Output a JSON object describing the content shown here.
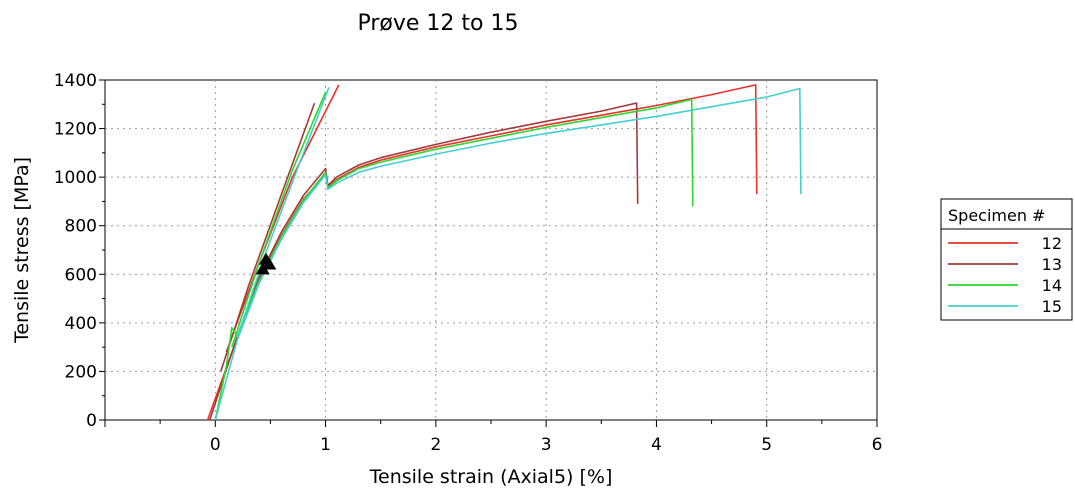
{
  "chart_data": {
    "type": "line",
    "title": "Prøve 12 to 15",
    "xlabel": "Tensile strain (Axial5) [%]",
    "ylabel": "Tensile stress [MPa]",
    "xlim": [
      -1,
      6
    ],
    "ylim": [
      0,
      1400
    ],
    "xticks": [
      0,
      1,
      2,
      3,
      4,
      5,
      6
    ],
    "yticks": [
      0,
      200,
      400,
      600,
      800,
      1000,
      1200,
      1400
    ],
    "grid": true,
    "legend_title": "Specimen #",
    "legend_position": "right",
    "series": [
      {
        "name": "12",
        "color": "#e8322a",
        "segments": [
          [
            [
              -0.07,
              0
            ],
            [
              0.2,
              340
            ],
            [
              0.4,
              580
            ],
            [
              0.6,
              760
            ],
            [
              0.8,
              910
            ],
            [
              1.0,
              1010
            ],
            [
              1.02,
              960
            ],
            [
              1.1,
              990
            ],
            [
              1.3,
              1040
            ],
            [
              1.5,
              1070
            ],
            [
              2.0,
              1125
            ],
            [
              2.5,
              1170
            ],
            [
              3.0,
              1215
            ],
            [
              3.5,
              1255
            ],
            [
              4.0,
              1295
            ],
            [
              4.5,
              1340
            ],
            [
              4.9,
              1380
            ],
            [
              4.91,
              930
            ]
          ],
          [
            [
              0.1,
              280
            ],
            [
              0.4,
              650
            ],
            [
              0.7,
              1000
            ],
            [
              1.12,
              1380
            ]
          ]
        ]
      },
      {
        "name": "13",
        "color": "#a33a3a",
        "segments": [
          [
            [
              -0.05,
              0
            ],
            [
              0.2,
              345
            ],
            [
              0.4,
              590
            ],
            [
              0.6,
              775
            ],
            [
              0.8,
              925
            ],
            [
              1.0,
              1035
            ],
            [
              1.02,
              965
            ],
            [
              1.1,
              1000
            ],
            [
              1.3,
              1050
            ],
            [
              1.5,
              1080
            ],
            [
              2.0,
              1135
            ],
            [
              2.5,
              1185
            ],
            [
              3.0,
              1230
            ],
            [
              3.5,
              1272
            ],
            [
              3.82,
              1305
            ],
            [
              3.83,
              890
            ]
          ],
          [
            [
              0.05,
              200
            ],
            [
              0.3,
              550
            ],
            [
              0.6,
              930
            ],
            [
              0.9,
              1305
            ]
          ]
        ]
      },
      {
        "name": "14",
        "color": "#2ed62e",
        "segments": [
          [
            [
              0.0,
              0
            ],
            [
              0.1,
              220
            ],
            [
              0.15,
              380
            ],
            [
              0.2,
              345
            ],
            [
              0.4,
              575
            ],
            [
              0.6,
              755
            ],
            [
              0.8,
              905
            ],
            [
              1.0,
              1020
            ],
            [
              1.02,
              955
            ],
            [
              1.1,
              985
            ],
            [
              1.3,
              1035
            ],
            [
              1.5,
              1062
            ],
            [
              2.0,
              1115
            ],
            [
              2.5,
              1160
            ],
            [
              3.0,
              1205
            ],
            [
              3.5,
              1245
            ],
            [
              4.0,
              1285
            ],
            [
              4.32,
              1320
            ],
            [
              4.33,
              880
            ]
          ],
          [
            [
              0.15,
              300
            ],
            [
              0.4,
              650
            ],
            [
              0.7,
              1030
            ],
            [
              1.0,
              1350
            ]
          ]
        ]
      },
      {
        "name": "15",
        "color": "#45cfcf",
        "segments": [
          [
            [
              0.0,
              0
            ],
            [
              0.2,
              330
            ],
            [
              0.4,
              565
            ],
            [
              0.6,
              745
            ],
            [
              0.8,
              895
            ],
            [
              1.0,
              1010
            ],
            [
              1.02,
              950
            ],
            [
              1.1,
              975
            ],
            [
              1.3,
              1020
            ],
            [
              1.5,
              1045
            ],
            [
              2.0,
              1095
            ],
            [
              2.5,
              1140
            ],
            [
              3.0,
              1180
            ],
            [
              3.5,
              1215
            ],
            [
              4.0,
              1250
            ],
            [
              4.5,
              1290
            ],
            [
              5.0,
              1330
            ],
            [
              5.3,
              1365
            ],
            [
              5.31,
              930
            ]
          ],
          [
            [
              0.2,
              340
            ],
            [
              0.45,
              680
            ],
            [
              0.75,
              1040
            ],
            [
              1.03,
              1370
            ]
          ]
        ]
      }
    ],
    "markers": [
      {
        "shape": "triangle",
        "color": "#000000",
        "x": 0.43,
        "y": 620
      },
      {
        "shape": "triangle",
        "color": "#000000",
        "x": 0.46,
        "y": 660
      },
      {
        "shape": "triangle",
        "color": "#000000",
        "x": 0.49,
        "y": 640
      }
    ]
  }
}
